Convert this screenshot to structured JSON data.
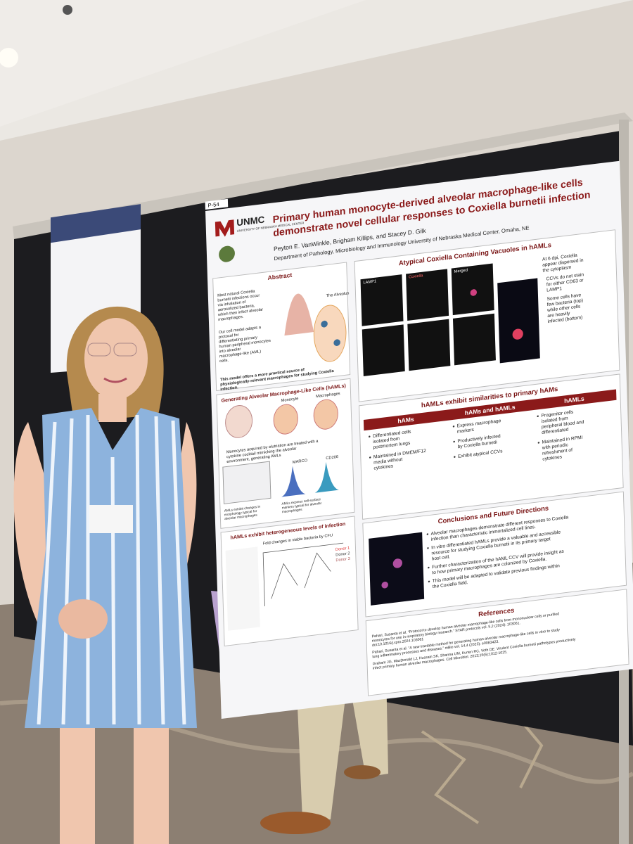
{
  "poster": {
    "board_id": "P-54",
    "logo": {
      "name": "UNMC",
      "subtitle": "UNIVERSITY OF NEBRASKA MEDICAL CENTER"
    },
    "title": [
      "Primary human monocyte-derived alveolar macrophage-like cells",
      "demonstrate novel cellular responses to Coxiella burnetii infection"
    ],
    "authors": "Peyton E. VanWinkle, Brigham Killips, and Stacey D. Gilk",
    "affiliation": "Department of Pathology, Microbiology and Immunology University of Nebraska Medical Center, Omaha, NE",
    "abstract": {
      "heading": "Abstract",
      "bullets": [
        "Most natural Coxiella burnetii infections occur via inhalation of aerosolized bacteria, which then infect alveolar macrophages.",
        "Our cell model adapts a protocol for differentiating primary human peripheral monocytes into alveolar macrophage-like (AML) cells."
      ],
      "figure_label": "The Alveolus",
      "note": "This model offers a more practical source of physiologically-relevant macrophages for studying Coxiella infection."
    },
    "generating": {
      "heading": "Generating Alveolar Macrophage-Like Cells (hAMLs)",
      "labels": [
        "Monocyte",
        "Macrophages",
        "MARCO",
        "CD206"
      ],
      "caption": "Monocytes acquired by elutriation are treated with a cytokine cocktail mimicking the alveolar environment, generating AMLs",
      "captions_lower": [
        "AMLs exhibit changes in morphology typical for alveolar macrophages",
        "AMLs express cell-surface markers typical for alveolar macrophages"
      ]
    },
    "heterogeneous": {
      "heading": "hAMLs exhibit heterogeneous levels of infection",
      "chart_title": "Fold changes in viable bacteria by CFU",
      "legend": [
        "Donor 1",
        "Donor 2",
        "Donor 3"
      ]
    },
    "ccv": {
      "heading": "Atypical Coxiella Containing Vacuoles in hAMLs",
      "panel_labels": [
        "LAMP1",
        "Coxiella",
        "Merged"
      ],
      "bullets": [
        "At 6 dpi, Coxiella appear dispersed in the cytoplasm",
        "CCVs do not stain for either CD63 or LAMP1",
        "Some cells have few bacteria (top) while other cells are heavily infected (bottom)"
      ]
    },
    "similarities": {
      "heading": "hAMLs exhibit similarities to primary hAMs",
      "columns": [
        {
          "name": "hAMs",
          "bullets": [
            "Differentiated cells isolated from postmortem lungs",
            "Maintained in DMEM/F12 media without cytokines"
          ]
        },
        {
          "name": "hAMs and hAMLs",
          "bullets": [
            "Express macrophage markers",
            "Productively infected by Coxiella burnetii",
            "Exhibit atypical CCVs"
          ]
        },
        {
          "name": "hAMLs",
          "bullets": [
            "Progenitor cells isolated from peripheral blood and differentiated",
            "Maintained in RPMI with periodic refreshment of cytokines"
          ]
        }
      ]
    },
    "conclusions": {
      "heading": "Conclusions and Future Directions",
      "bullets": [
        "Alveolar macrophages demonstrate different responses to Coxiella infection than characteristic immortalized cell lines.",
        "In vitro differentiated hAMLs provide a valuable and accessible resource for studying Coxiella burnetii in its primary target host cell.",
        "Further characterization of the hAML CCV will provide insight as to how primary macrophages are colonized by Coxiella.",
        "This model will be adapted to validate previous findings within the Coxiella field."
      ]
    },
    "references": {
      "heading": "References",
      "items": [
        "Pahari, Susanta et al. “Protocol to develop human alveolar macrophage-like cells from mononuclear cells or purified monocytes for use in respiratory biology research.” STAR protocols vol. 5,2 (2024): 103061. doi:10.1016/j.xpro.2024.103061",
        "Pahari, Susanta et al. “A new tractable method for generating human alveolar macrophage-like cells in vitro to study lung inflammatory processes and diseases.” mBio vol. 14,4 (2023): e0083423.",
        "Graham JG, MacDonald LJ, Hussain SK, Sharma UM, Kurten RC, Voth DE. Virulent Coxiella burnetii pathotypes productively infect primary human alveolar macrophages. Cell Microbiol. 2013;15(6):1012-1025."
      ]
    }
  }
}
